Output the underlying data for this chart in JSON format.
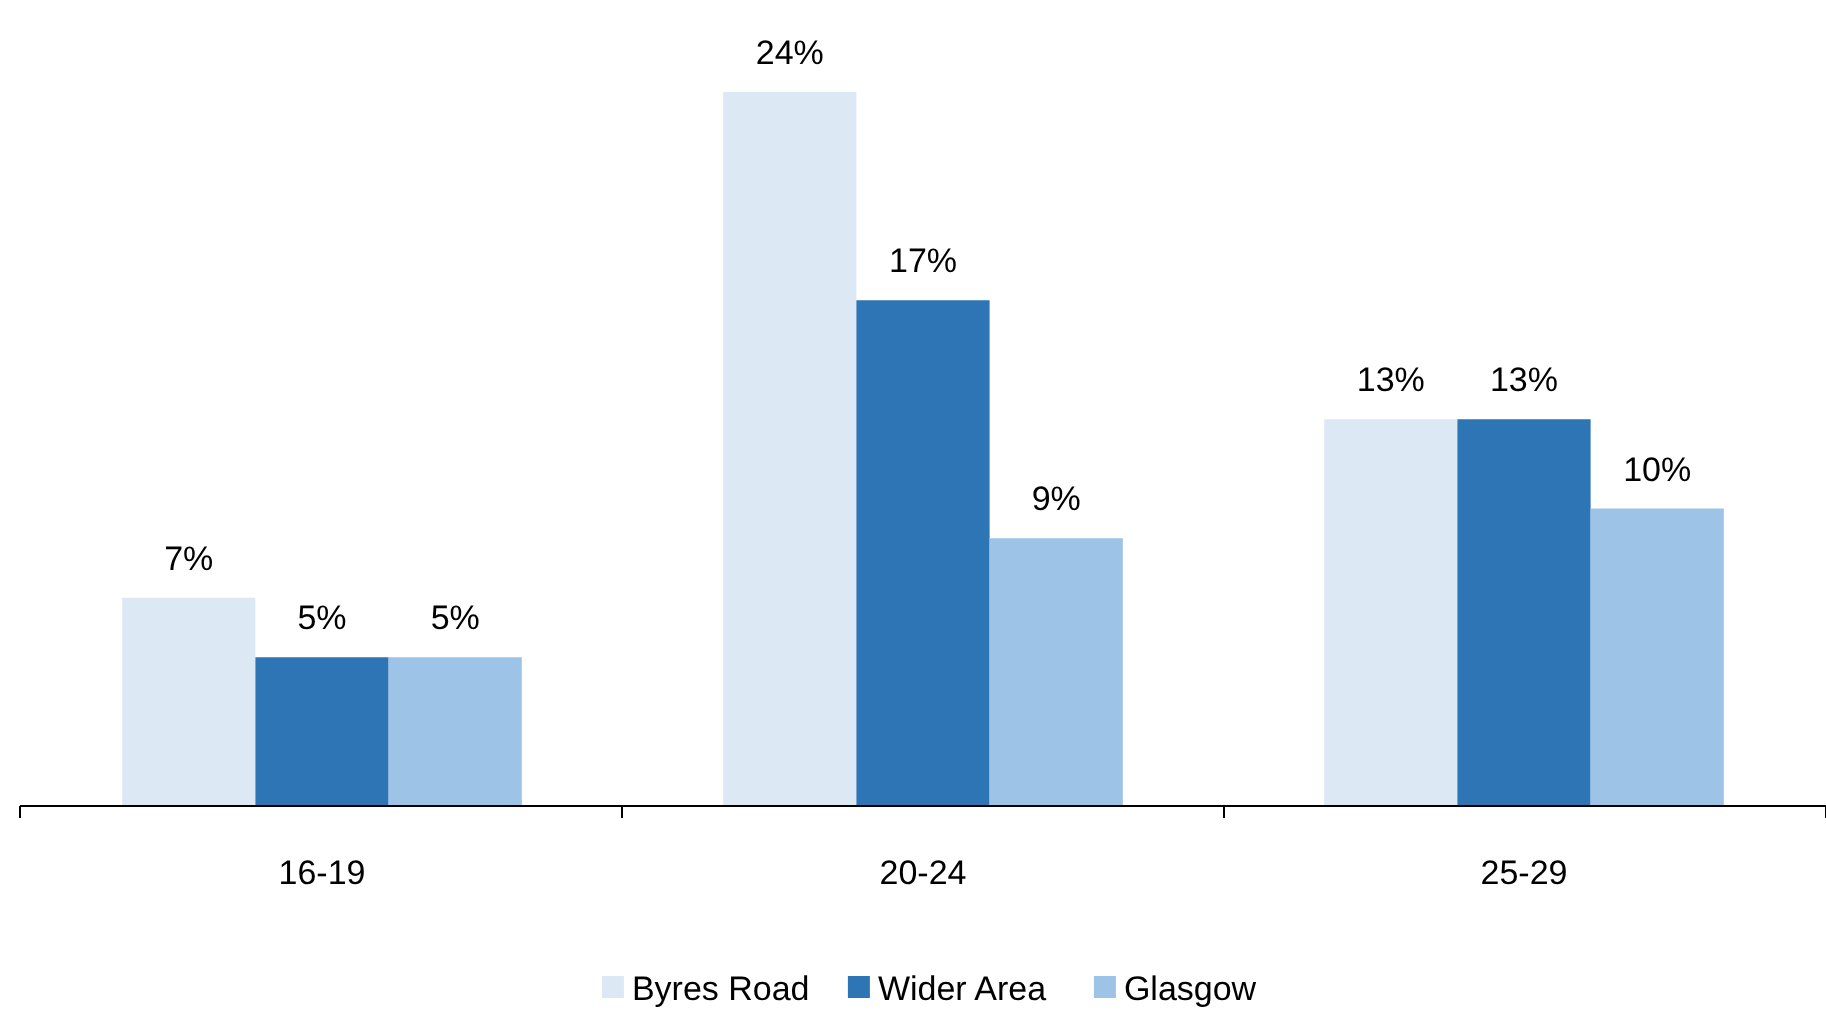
{
  "chart_data": {
    "type": "bar",
    "categories": [
      "16-19",
      "20-24",
      "25-29"
    ],
    "series": [
      {
        "name": "Byres Road",
        "color": "#dde8f5",
        "values": [
          7,
          24,
          13
        ],
        "value_labels": [
          "7%",
          "24%",
          "13%"
        ]
      },
      {
        "name": "Wider Area",
        "color": "#2e75b6",
        "values": [
          5,
          17,
          13
        ],
        "value_labels": [
          "5%",
          "17%",
          "13%"
        ]
      },
      {
        "name": "Glasgow",
        "color": "#9dc3e6",
        "values": [
          5,
          9,
          10
        ],
        "value_labels": [
          "5%",
          "9%",
          "10%"
        ]
      }
    ],
    "legend": "bottom"
  }
}
